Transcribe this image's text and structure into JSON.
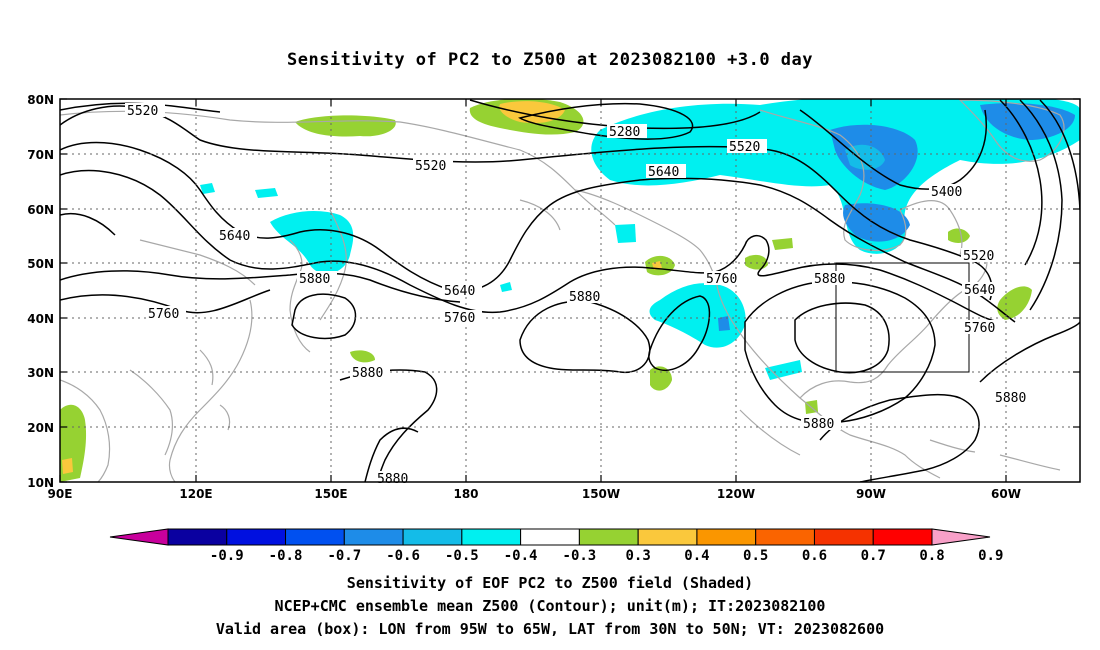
{
  "title": "Sensitivity of PC2 to Z500 at 2023082100 +3.0 day",
  "axes": {
    "lat_ticks": [
      "80N",
      "70N",
      "60N",
      "50N",
      "40N",
      "30N",
      "20N",
      "10N"
    ],
    "lon_ticks": [
      "90E",
      "120E",
      "150E",
      "180",
      "150W",
      "120W",
      "90W",
      "60W"
    ]
  },
  "contour_labels": [
    "5520",
    "5280",
    "5520",
    "5520",
    "5640",
    "5400",
    "5640",
    "5880",
    "5520",
    "5640",
    "5640",
    "5760",
    "5880",
    "5760",
    "5880",
    "5760",
    "5760",
    "5880",
    "5880",
    "5880",
    "5880"
  ],
  "validation_box": {
    "lon_min": -95,
    "lon_max": -65,
    "lat_min": 30,
    "lat_max": 50
  },
  "colorbar": {
    "labels": [
      "-0.9",
      "-0.8",
      "-0.7",
      "-0.6",
      "-0.5",
      "-0.4",
      "-0.3",
      "0.3",
      "0.4",
      "0.5",
      "0.6",
      "0.7",
      "0.8",
      "0.9"
    ],
    "colors": [
      "#c8009c",
      "#0a00a0",
      "#0010e0",
      "#0050f0",
      "#1e8ce8",
      "#14bce8",
      "#00f0f0",
      "#ffffff",
      "#96d232",
      "#fac83c",
      "#fa9600",
      "#fa6400",
      "#f53200",
      "#ff0000",
      "#f8a0c8"
    ]
  },
  "captions": {
    "line1": "Sensitivity of EOF PC2 to Z500 field (Shaded)",
    "line2": "NCEP+CMC ensemble mean Z500 (Contour); unit(m); IT:2023082100",
    "line3": "Valid area (box): LON from 95W to 65W, LAT from 30N to 50N; VT: 2023082600"
  }
}
